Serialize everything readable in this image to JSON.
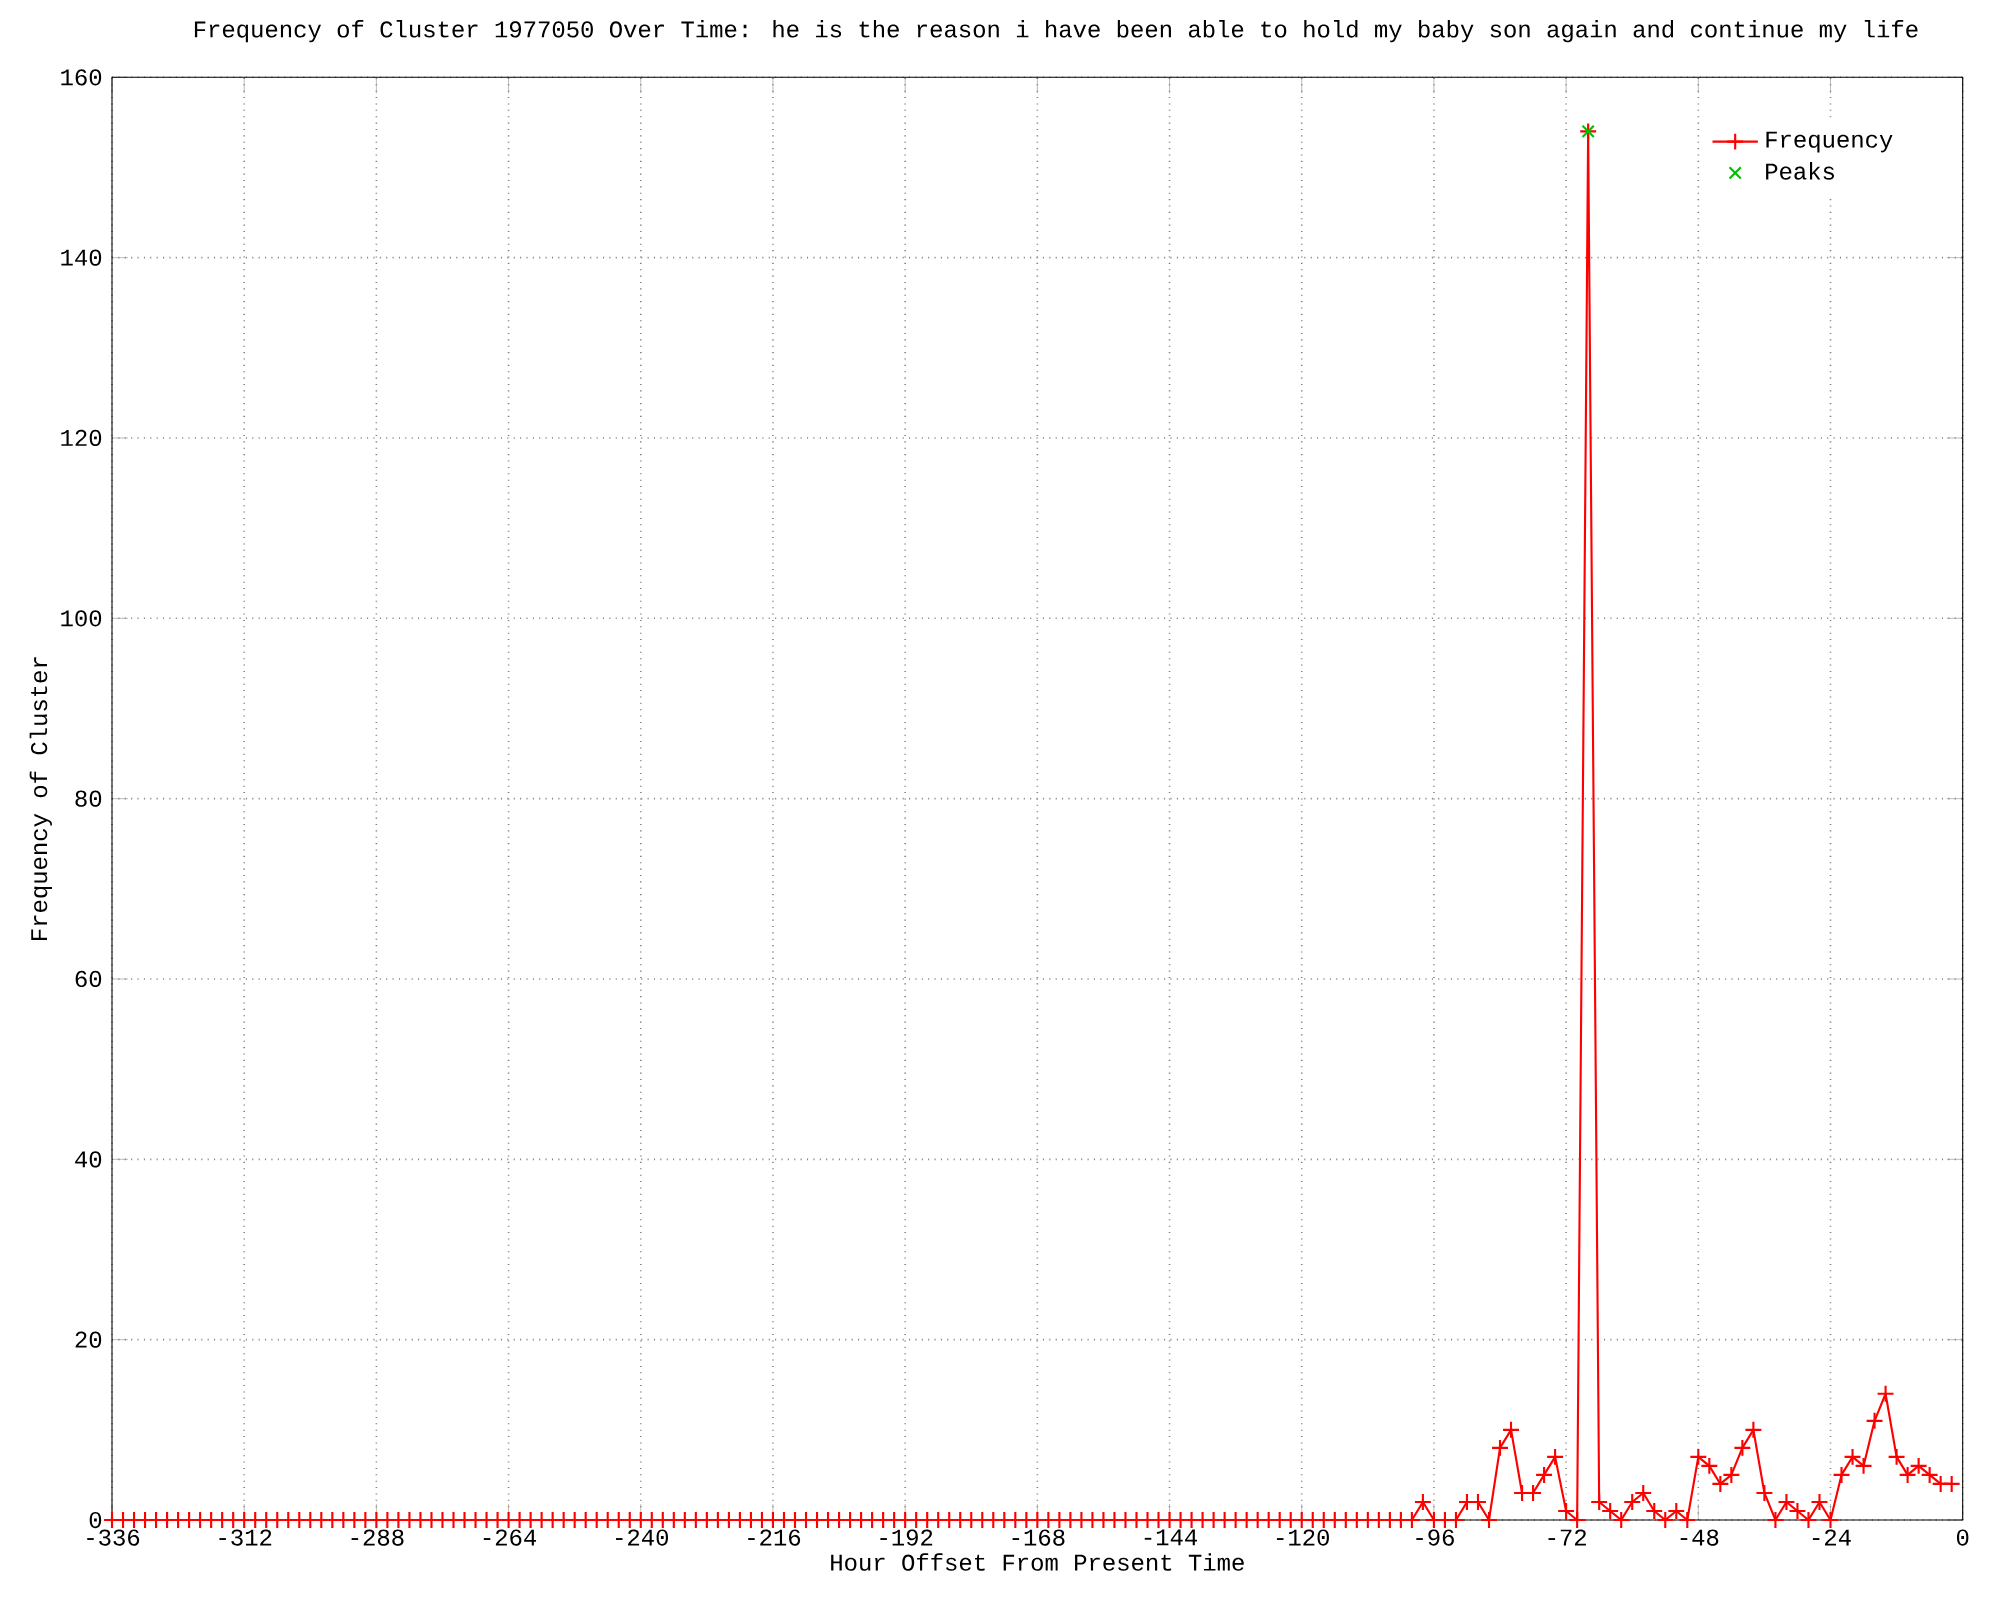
{
  "chart_data": {
    "type": "line",
    "title": "Frequency of Cluster 1977050 Over Time: he is the reason i have been able to hold my baby son again and continue my life",
    "xlabel": "Hour Offset From Present Time",
    "ylabel": "Frequency of Cluster",
    "xlim": [
      -336,
      0
    ],
    "ylim": [
      0,
      160
    ],
    "xticks": [
      -336,
      -312,
      -288,
      -264,
      -240,
      -216,
      -192,
      -168,
      -144,
      -120,
      -96,
      -72,
      -48,
      -24,
      0
    ],
    "yticks": [
      0,
      20,
      40,
      60,
      80,
      100,
      120,
      140,
      160
    ],
    "grid": true,
    "legend": "top right",
    "series": [
      {
        "name": "Frequency",
        "type": "line",
        "color": "#ff0000",
        "marker": "cross",
        "x": [
          -336,
          -334,
          -332,
          -330,
          -328,
          -326,
          -324,
          -322,
          -320,
          -318,
          -316,
          -314,
          -312,
          -310,
          -308,
          -306,
          -304,
          -302,
          -300,
          -298,
          -296,
          -294,
          -292,
          -290,
          -288,
          -286,
          -284,
          -282,
          -280,
          -278,
          -276,
          -274,
          -272,
          -270,
          -268,
          -266,
          -264,
          -262,
          -260,
          -258,
          -256,
          -254,
          -252,
          -250,
          -248,
          -246,
          -244,
          -242,
          -240,
          -238,
          -236,
          -234,
          -232,
          -230,
          -228,
          -226,
          -224,
          -222,
          -220,
          -218,
          -216,
          -214,
          -212,
          -210,
          -208,
          -206,
          -204,
          -202,
          -200,
          -198,
          -196,
          -194,
          -192,
          -190,
          -188,
          -186,
          -184,
          -182,
          -180,
          -178,
          -176,
          -174,
          -172,
          -170,
          -168,
          -166,
          -164,
          -162,
          -160,
          -158,
          -156,
          -154,
          -152,
          -150,
          -148,
          -146,
          -144,
          -142,
          -140,
          -138,
          -136,
          -134,
          -132,
          -130,
          -128,
          -126,
          -124,
          -122,
          -120,
          -118,
          -116,
          -114,
          -112,
          -110,
          -108,
          -106,
          -104,
          -102,
          -100,
          -98,
          -96,
          -94,
          -92,
          -90,
          -88,
          -86,
          -84,
          -82,
          -80,
          -78,
          -76,
          -74,
          -72,
          -70,
          -68,
          -66,
          -64,
          -62,
          -60,
          -58,
          -56,
          -54,
          -52,
          -50,
          -48,
          -46,
          -44,
          -42,
          -40,
          -38,
          -36,
          -34,
          -32,
          -30,
          -28,
          -26,
          -24,
          -22,
          -20,
          -18,
          -16,
          -14,
          -12,
          -10,
          -8,
          -6,
          -4,
          -2
        ],
        "values": [
          0,
          0,
          0,
          0,
          0,
          0,
          0,
          0,
          0,
          0,
          0,
          0,
          0,
          0,
          0,
          0,
          0,
          0,
          0,
          0,
          0,
          0,
          0,
          0,
          0,
          0,
          0,
          0,
          0,
          0,
          0,
          0,
          0,
          0,
          0,
          0,
          0,
          0,
          0,
          0,
          0,
          0,
          0,
          0,
          0,
          0,
          0,
          0,
          0,
          0,
          0,
          0,
          0,
          0,
          0,
          0,
          0,
          0,
          0,
          0,
          0,
          0,
          0,
          0,
          0,
          0,
          0,
          0,
          0,
          0,
          0,
          0,
          0,
          0,
          0,
          0,
          0,
          0,
          0,
          0,
          0,
          0,
          0,
          0,
          0,
          0,
          0,
          0,
          0,
          0,
          0,
          0,
          0,
          0,
          0,
          0,
          0,
          0,
          0,
          0,
          0,
          0,
          0,
          0,
          0,
          0,
          0,
          0,
          0,
          0,
          0,
          0,
          0,
          0,
          0,
          0,
          0,
          0,
          0,
          2,
          0,
          0,
          0,
          2,
          2,
          0,
          8,
          10,
          3,
          3,
          5,
          7,
          1,
          0,
          154,
          2,
          1,
          0,
          2,
          3,
          1,
          0,
          1,
          0,
          7,
          6,
          4,
          5,
          8,
          10,
          3,
          0,
          2,
          1,
          0,
          2,
          0,
          5,
          7,
          6,
          11,
          14,
          7,
          5,
          6,
          5,
          4,
          4
        ]
      },
      {
        "name": "Peaks",
        "type": "scatter",
        "color": "#00c000",
        "marker": "cross",
        "x": [
          -68
        ],
        "values": [
          154
        ]
      }
    ]
  }
}
